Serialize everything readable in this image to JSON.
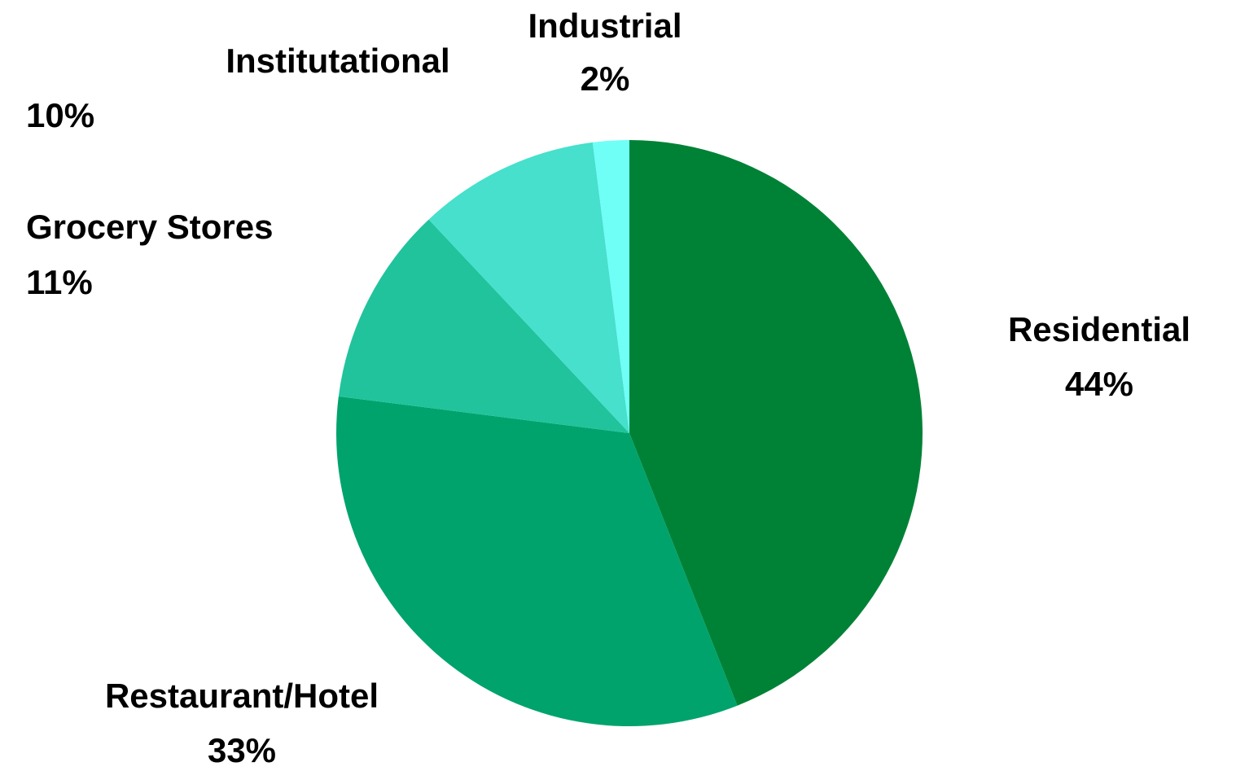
{
  "chart_data": {
    "type": "pie",
    "categories": [
      "Residential",
      "Restaurant/Hotel",
      "Grocery Stores",
      "Institutational",
      "Industrial"
    ],
    "values": [
      44,
      33,
      11,
      10,
      2
    ],
    "value_labels": [
      "44%",
      "33%",
      "11%",
      "10%",
      "2%"
    ],
    "colors": [
      "#008236",
      "#00a36c",
      "#20c39c",
      "#46e0cc",
      "#6ffff7"
    ]
  }
}
